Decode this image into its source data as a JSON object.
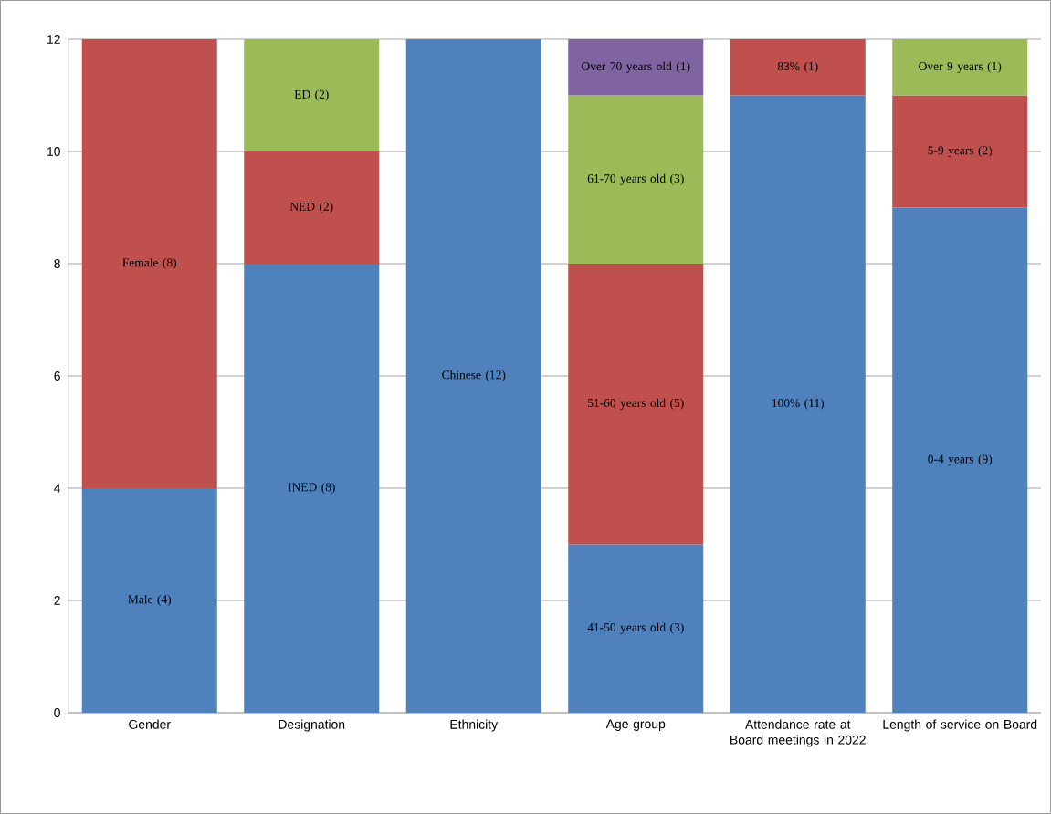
{
  "chart_data": {
    "type": "bar",
    "stacked": true,
    "grid": "y",
    "categories": [
      "Gender",
      "Designation",
      "Ethnicity",
      "Age group",
      "Attendance rate at Board meetings in 2022",
      "Length of service on Board"
    ],
    "ylim": [
      0,
      12
    ],
    "yticks": [
      0,
      2,
      4,
      6,
      8,
      10,
      12
    ],
    "series": [
      {
        "color": "#4f81bd",
        "values": [
          4,
          8,
          12,
          3,
          11,
          9
        ],
        "value_labels": [
          "Male (4)",
          "INED (8)",
          "Chinese (12)",
          "41-50 years old (3)",
          "100% (11)",
          "0-4 years (9)"
        ]
      },
      {
        "color": "#c0504d",
        "values": [
          8,
          2,
          null,
          5,
          1,
          2
        ],
        "value_labels": [
          "Female (8)",
          "NED (2)",
          null,
          "51-60 years old (5)",
          "83% (1)",
          "5-9 years (2)"
        ]
      },
      {
        "color": "#9bbb59",
        "values": [
          null,
          2,
          null,
          3,
          null,
          1
        ],
        "value_labels": [
          null,
          "ED (2)",
          null,
          "61-70 years old (3)",
          null,
          "Over 9 years (1)"
        ]
      },
      {
        "color": "#8064a2",
        "values": [
          null,
          null,
          null,
          1,
          null,
          null
        ],
        "value_labels": [
          null,
          null,
          null,
          "Over 70 years old (1)",
          null,
          null
        ]
      }
    ]
  }
}
